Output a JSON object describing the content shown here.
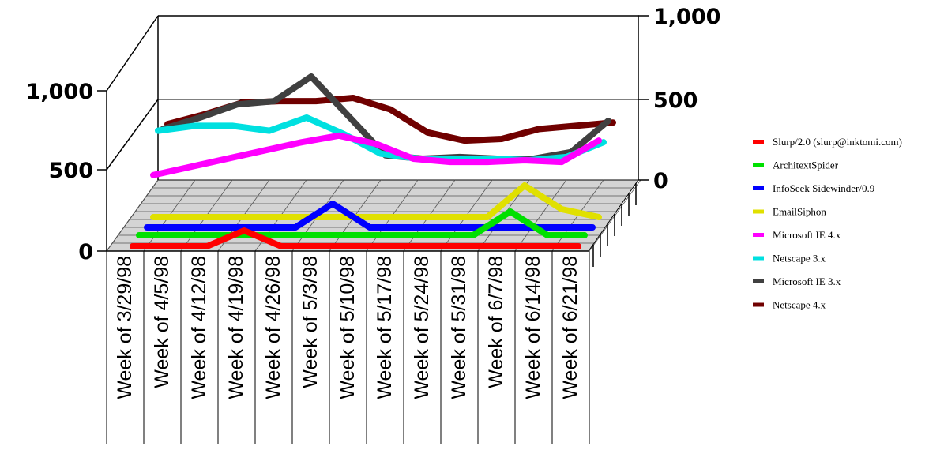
{
  "chart_data": {
    "type": "line",
    "title": "",
    "xlabel": "",
    "ylabel": "",
    "style": "3d-stacked-panels",
    "categories": [
      "Week of 3/29/98",
      "Week of 4/5/98",
      "Week of 4/12/98",
      "Week of 4/19/98",
      "Week of 4/26/98",
      "Week of 5/3/98",
      "Week of 5/10/98",
      "Week of 5/17/98",
      "Week of 5/24/98",
      "Week of 5/31/98",
      "Week of 6/7/98",
      "Week of 6/14/98",
      "Week of 6/21/98"
    ],
    "upper_panel": {
      "left_ticks": [
        "0",
        "500",
        "1,000"
      ],
      "right_ticks": [
        "0",
        "500",
        "1,000"
      ],
      "ylim": [
        0,
        1000
      ],
      "series": [
        {
          "name": "Microsoft IE 4.x",
          "color": "#ff00ff",
          "values": [
            30,
            80,
            130,
            180,
            230,
            270,
            220,
            130,
            110,
            110,
            120,
            110,
            240
          ]
        },
        {
          "name": "Netscape 3.x",
          "color": "#00e0e0",
          "values": [
            300,
            330,
            330,
            300,
            380,
            280,
            160,
            130,
            130,
            130,
            120,
            140,
            230
          ]
        },
        {
          "name": "Microsoft IE 3.x",
          "color": "#404040",
          "values": [
            310,
            380,
            460,
            480,
            630,
            390,
            150,
            130,
            140,
            130,
            130,
            170,
            360
          ]
        },
        {
          "name": "Netscape 4.x",
          "color": "#700000",
          "values": [
            340,
            400,
            470,
            480,
            480,
            500,
            430,
            290,
            240,
            250,
            310,
            330,
            350
          ]
        }
      ]
    },
    "lower_panel": {
      "left_ticks": [
        "0"
      ],
      "series": [
        {
          "name": "Slurp/2.0 (slurp@inktomi.com)",
          "color": "#ff0000",
          "values": [
            0,
            0,
            0,
            20,
            0,
            0,
            0,
            0,
            0,
            0,
            0,
            0,
            0
          ]
        },
        {
          "name": "ArchitextSpider",
          "color": "#00e000",
          "values": [
            0,
            0,
            0,
            0,
            0,
            0,
            0,
            0,
            0,
            0,
            30,
            0,
            0
          ]
        },
        {
          "name": "InfoSeek Sidewinder/0.9",
          "color": "#0000ff",
          "values": [
            0,
            0,
            0,
            0,
            0,
            30,
            0,
            0,
            0,
            0,
            0,
            0,
            0
          ]
        },
        {
          "name": "EmailSiphon",
          "color": "#e0e000",
          "values": [
            0,
            0,
            0,
            0,
            0,
            0,
            0,
            0,
            0,
            0,
            40,
            10,
            0
          ]
        }
      ]
    }
  },
  "legend": [
    {
      "label": "Slurp/2.0 (slurp@inktomi.com)",
      "color": "#ff0000"
    },
    {
      "label": "ArchitextSpider",
      "color": "#00e000"
    },
    {
      "label": "InfoSeek Sidewinder/0.9",
      "color": "#0000ff"
    },
    {
      "label": "EmailSiphon",
      "color": "#e0e000"
    },
    {
      "label": "Microsoft IE 4.x",
      "color": "#ff00ff"
    },
    {
      "label": "Netscape 3.x",
      "color": "#00e0e0"
    },
    {
      "label": "Microsoft IE 3.x",
      "color": "#404040"
    },
    {
      "label": "Netscape 4.x",
      "color": "#700000"
    }
  ]
}
